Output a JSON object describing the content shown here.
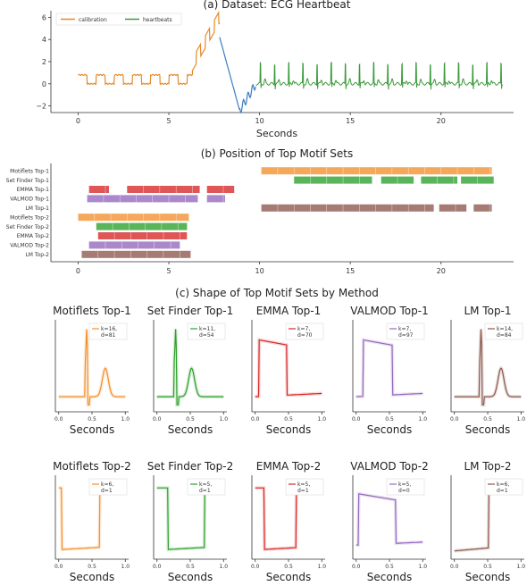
{
  "colors": {
    "calibration": "#e58a2e",
    "heartbeats": "#3a9a3a",
    "anomaly": "#3a7ec1",
    "methods": [
      "#f28e2b",
      "#2ca02c",
      "#d62728",
      "#9467bd",
      "#8c564b"
    ]
  },
  "chart_data": [
    {
      "type": "line",
      "title": "(a) Dataset: ECG Heartbeat",
      "xlabel": "Seconds",
      "xlim": [
        -1.5,
        24
      ],
      "ylim": [
        -2.6,
        6.6
      ],
      "xticks": [
        "0",
        "5",
        "10",
        "15",
        "20"
      ],
      "yticks": [
        "−2",
        "0",
        "2",
        "4",
        "6"
      ],
      "legend_position": "top-left",
      "series": [
        {
          "name": "calibration",
          "color_key": "calibration",
          "x_range": [
            0,
            7.8
          ],
          "pattern": "square_wave",
          "low": 0.0,
          "high": 0.8,
          "period": 1.0,
          "ramp": {
            "from_x": 6.3,
            "to_x": 7.8,
            "peak": 5.8
          }
        },
        {
          "name": "",
          "color_key": "anomaly",
          "x_range": [
            7.8,
            9.8
          ],
          "pattern": "dip",
          "min": -2.4
        },
        {
          "name": "heartbeats",
          "color_key": "heartbeats",
          "x_range": [
            9.8,
            23.4
          ],
          "pattern": "heartbeat",
          "baseline": 0.0,
          "spike": 1.8,
          "beat_period": 0.78
        }
      ]
    },
    {
      "type": "bar",
      "subtype": "interval-ranges",
      "title": "(b) Position of Top Motif Sets",
      "xlim": [
        -1.5,
        24
      ],
      "xticks": [
        "0",
        "5",
        "10",
        "15",
        "20"
      ],
      "categories": [
        "Motiflets Top-1",
        "Set Finder Top-1",
        "EMMA Top-1",
        "VALMOD Top-1",
        "LM Top-1",
        "Motiflets Top-2",
        "Set Finder Top-2",
        "EMMA Top-2",
        "VALMOD Top-2",
        "LM Top-2"
      ],
      "rows": [
        {
          "color_index": 0,
          "intervals": [
            [
              10.1,
              22.8
            ]
          ]
        },
        {
          "color_index": 1,
          "intervals": [
            [
              11.9,
              16.2
            ],
            [
              16.7,
              18.5
            ],
            [
              18.9,
              20.9
            ],
            [
              21.1,
              22.9
            ]
          ]
        },
        {
          "color_index": 2,
          "intervals": [
            [
              0.6,
              1.7
            ],
            [
              2.7,
              6.7
            ],
            [
              7.1,
              8.6
            ]
          ]
        },
        {
          "color_index": 3,
          "intervals": [
            [
              0.5,
              6.6
            ],
            [
              7.1,
              8.1
            ]
          ]
        },
        {
          "color_index": 4,
          "intervals": [
            [
              10.1,
              19.6
            ],
            [
              19.9,
              21.4
            ],
            [
              21.8,
              22.8
            ]
          ]
        },
        {
          "color_index": 0,
          "intervals": [
            [
              0.0,
              6.1
            ]
          ]
        },
        {
          "color_index": 1,
          "intervals": [
            [
              1.0,
              6.0
            ]
          ]
        },
        {
          "color_index": 2,
          "intervals": [
            [
              1.1,
              6.0
            ]
          ]
        },
        {
          "color_index": 3,
          "intervals": [
            [
              0.6,
              5.6
            ]
          ]
        },
        {
          "color_index": 4,
          "intervals": [
            [
              0.2,
              6.2
            ]
          ]
        }
      ]
    },
    {
      "type": "line",
      "title": "(c) Shape of Top Motif Sets by Method",
      "xlabel": "Seconds",
      "xlim": [
        -0.05,
        1.05
      ],
      "xticks": [
        "0.0",
        "0.5",
        "1.0"
      ],
      "panels": [
        {
          "title": "Motiflets Top-1",
          "k": "k=16,",
          "d": "d=81",
          "color_index": 0,
          "shape": "beat",
          "peak_x": 0.42,
          "second_peak_x": 0.7
        },
        {
          "title": "Set Finder Top-1",
          "k": "k=11,",
          "d": "d=54",
          "color_index": 1,
          "shape": "beat",
          "peak_x": 0.28,
          "second_peak_x": 0.52
        },
        {
          "title": "EMMA Top-1",
          "k": "k=7,",
          "d": "d=70",
          "color_index": 2,
          "shape": "square",
          "rise_x": 0.05,
          "fall_x": 0.48
        },
        {
          "title": "VALMOD Top-1",
          "k": "k=7,",
          "d": "d=97",
          "color_index": 3,
          "shape": "square",
          "rise_x": 0.1,
          "fall_x": 0.55
        },
        {
          "title": "LM Top-1",
          "k": "k=14,",
          "d": "d=84",
          "color_index": 4,
          "shape": "beat",
          "peak_x": 0.4,
          "second_peak_x": 0.7
        },
        {
          "title": "Motiflets Top-2",
          "k": "k=6,",
          "d": "d=1",
          "color_index": 0,
          "shape": "plateau",
          "rise_x": 0.62,
          "fall_x": 0.05
        },
        {
          "title": "Set Finder Top-2",
          "k": "k=5,",
          "d": "d=1",
          "color_index": 1,
          "shape": "plateau",
          "rise_x": 0.72,
          "fall_x": 0.17
        },
        {
          "title": "EMMA Top-2",
          "k": "k=5,",
          "d": "d=1",
          "color_index": 2,
          "shape": "plateau",
          "rise_x": 0.62,
          "fall_x": 0.13
        },
        {
          "title": "VALMOD Top-2",
          "k": "k=5,",
          "d": "d=0",
          "color_index": 3,
          "shape": "square",
          "rise_x": 0.03,
          "fall_x": 0.6
        },
        {
          "title": "LM Top-2",
          "k": "k=6,",
          "d": "d=1",
          "color_index": 4,
          "shape": "step_end",
          "rise_x": 0.52
        }
      ]
    }
  ]
}
